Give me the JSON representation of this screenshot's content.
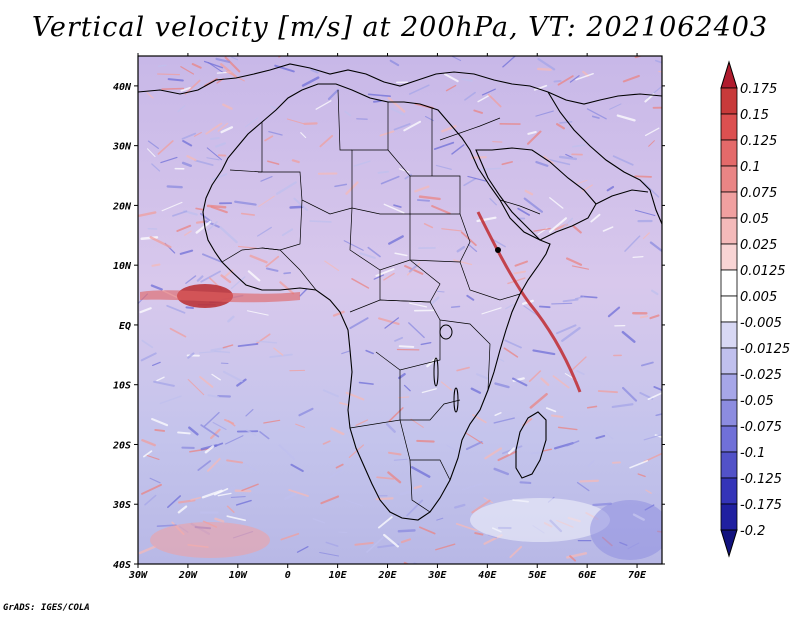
{
  "title": "Vertical velocity [m/s] at 200hPa, VT: 2021062403",
  "footer": "GrADS: IGES/COLA",
  "map": {
    "lon_labels": [
      "30W",
      "20W",
      "10W",
      "0",
      "10E",
      "20E",
      "30E",
      "40E",
      "50E",
      "60E",
      "70E"
    ],
    "lat_labels": [
      "40N",
      "30N",
      "20N",
      "10N",
      "EQ",
      "10S",
      "20S",
      "30S",
      "40S"
    ],
    "lon_range": [
      -30,
      75
    ],
    "lat_range": [
      -40,
      45
    ],
    "field": "vertical velocity",
    "pressure_level": "200hPa",
    "valid_time": "2021062403"
  },
  "colorbar": {
    "labels": [
      "0.175",
      "0.15",
      "0.125",
      "0.1",
      "0.075",
      "0.05",
      "0.025",
      "0.0125",
      "0.005",
      "-0.005",
      "-0.0125",
      "-0.025",
      "-0.05",
      "-0.075",
      "-0.1",
      "-0.125",
      "-0.175",
      "-0.2"
    ],
    "colors": [
      "#b01c2e",
      "#c83a3a",
      "#dc5050",
      "#e46a6a",
      "#ea8585",
      "#f0a0a0",
      "#f4baba",
      "#f8d4d4",
      "#ffffff",
      "#ffffff",
      "#d8d8f4",
      "#c0c0ee",
      "#a6a6e8",
      "#8c8ce0",
      "#7070d8",
      "#5252c8",
      "#3434b8",
      "#2020a0",
      "#12127e"
    ]
  }
}
